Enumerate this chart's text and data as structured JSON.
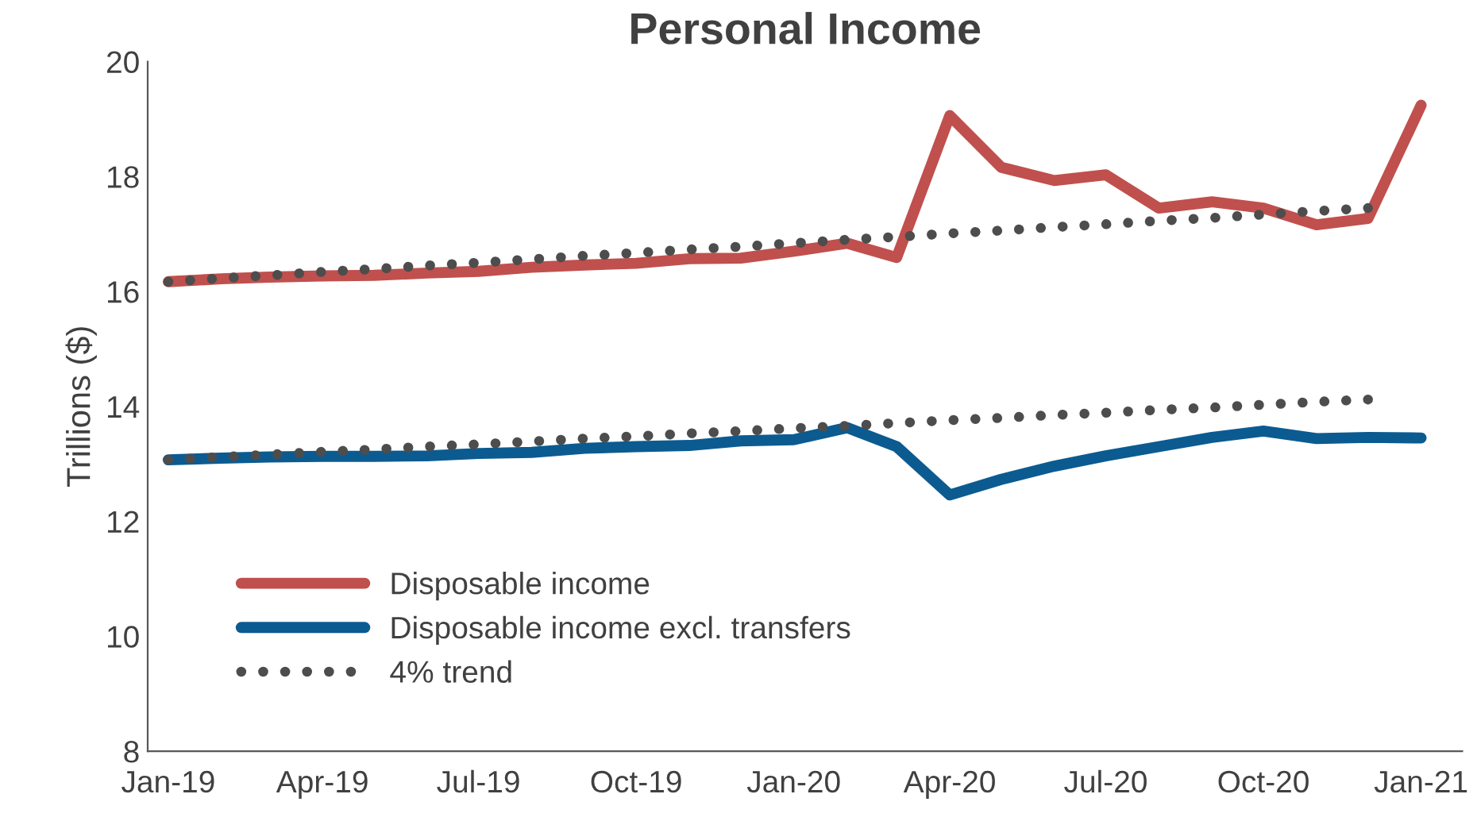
{
  "chart_data": {
    "type": "line",
    "title": "Personal Income",
    "ylabel": "Trillions ($)",
    "x": [
      "2019-01",
      "2019-02",
      "2019-03",
      "2019-04",
      "2019-05",
      "2019-06",
      "2019-07",
      "2019-08",
      "2019-09",
      "2019-10",
      "2019-11",
      "2019-12",
      "2020-01",
      "2020-02",
      "2020-03",
      "2020-04",
      "2020-05",
      "2020-06",
      "2020-07",
      "2020-08",
      "2020-09",
      "2020-10",
      "2020-11",
      "2020-12",
      "2021-01"
    ],
    "series": [
      {
        "name": "Disposable income",
        "color": "#c0504d",
        "line_style": "solid",
        "values": [
          16.17,
          16.22,
          16.25,
          16.27,
          16.28,
          16.32,
          16.35,
          16.42,
          16.46,
          16.49,
          16.57,
          16.58,
          16.7,
          16.84,
          16.59,
          19.06,
          18.16,
          17.93,
          18.03,
          17.45,
          17.56,
          17.45,
          17.16,
          17.27,
          19.24
        ]
      },
      {
        "name": "Disposable income excl. transfers",
        "color": "#0b5b91",
        "line_style": "solid",
        "values": [
          13.07,
          13.1,
          13.12,
          13.13,
          13.13,
          13.14,
          13.18,
          13.2,
          13.27,
          13.3,
          13.32,
          13.4,
          13.42,
          13.63,
          13.3,
          12.46,
          12.73,
          12.96,
          13.14,
          13.3,
          13.46,
          13.57,
          13.44,
          13.46,
          13.45
        ]
      },
      {
        "name": "4% trend",
        "color": "#4d4d4d",
        "line_style": "dotted",
        "values": [
          16.17,
          16.23,
          16.28,
          16.34,
          16.39,
          16.45,
          16.5,
          16.56,
          16.62,
          16.67,
          16.73,
          16.78,
          16.84,
          16.9,
          16.95,
          17.01,
          17.06,
          17.12,
          17.17,
          17.23,
          17.28,
          17.34,
          17.4,
          17.45,
          null
        ]
      },
      {
        "color": "#4d4d4d",
        "line_style": "dotted",
        "values": [
          13.07,
          13.12,
          13.16,
          13.21,
          13.25,
          13.3,
          13.34,
          13.39,
          13.44,
          13.48,
          13.53,
          13.57,
          13.62,
          13.66,
          13.71,
          13.76,
          13.8,
          13.85,
          13.89,
          13.94,
          13.98,
          14.03,
          14.08,
          14.12,
          null
        ]
      }
    ],
    "xlim": [
      "2018-12-20",
      "2021-01-25"
    ],
    "xticks": [
      {
        "value": "2019-01",
        "label": "Jan-19"
      },
      {
        "value": "2019-04",
        "label": "Apr-19"
      },
      {
        "value": "2019-07",
        "label": "Jul-19"
      },
      {
        "value": "2019-10",
        "label": "Oct-19"
      },
      {
        "value": "2020-01",
        "label": "Jan-20"
      },
      {
        "value": "2020-04",
        "label": "Apr-20"
      },
      {
        "value": "2020-07",
        "label": "Jul-20"
      },
      {
        "value": "2020-10",
        "label": "Oct-20"
      },
      {
        "value": "2021-01",
        "label": "Jan-21"
      }
    ],
    "ylim": [
      8,
      20
    ],
    "yticks": [
      8,
      10,
      12,
      14,
      16,
      18,
      20
    ],
    "grid": false,
    "legend": "bottom left",
    "marker": "none"
  }
}
